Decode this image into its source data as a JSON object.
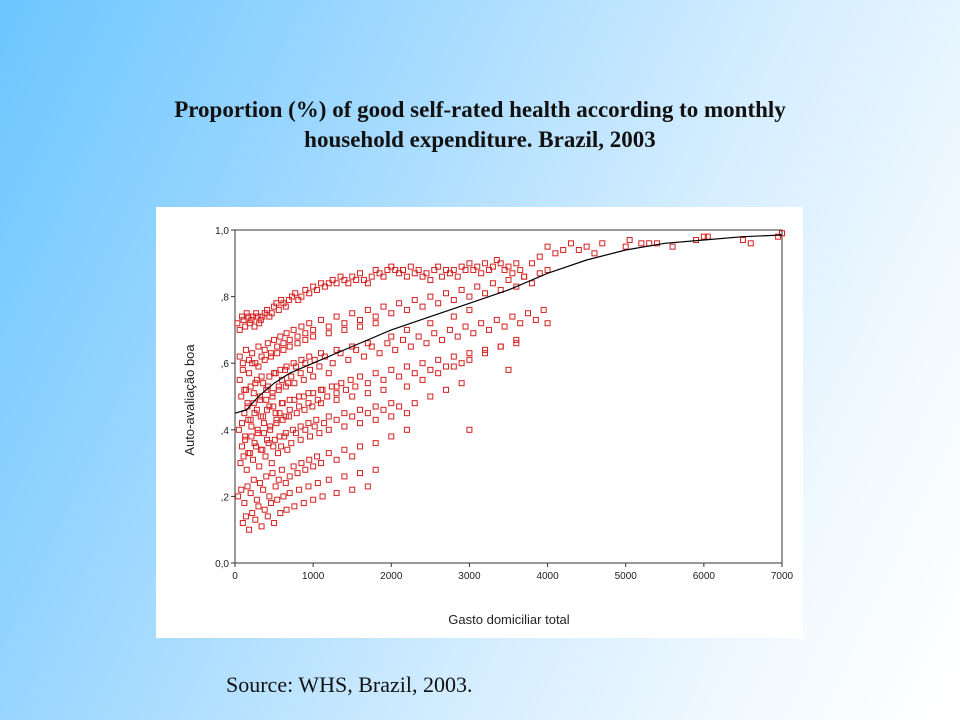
{
  "title": {
    "line1": "Proportion (%) of good self-rated health according to monthly",
    "line2": "household expenditure. Brazil, 2003"
  },
  "source": "Source: WHS, Brazil, 2003.",
  "chart_data": {
    "type": "scatter",
    "xlabel": "Gasto domiciliar total",
    "ylabel": "Auto-avaliação boa",
    "xlim": [
      0,
      7000
    ],
    "ylim": [
      0,
      1.0
    ],
    "x_ticks": [
      0,
      1000,
      2000,
      3000,
      4000,
      5000,
      6000,
      7000
    ],
    "x_tick_labels": [
      "0",
      "1000",
      "2000",
      "3000",
      "4000",
      "5000",
      "6000",
      "7000"
    ],
    "y_ticks": [
      0,
      0.2,
      0.4,
      0.6,
      0.8,
      1.0
    ],
    "y_tick_labels": [
      "0,0",
      ",2",
      ",4",
      ",6",
      ",8",
      "1,0"
    ],
    "marker_color": "#d42020",
    "line_color": "#000000",
    "grid": false,
    "fit_line": {
      "x": [
        0,
        150,
        300,
        500,
        700,
        1000,
        1500,
        2000,
        2500,
        3000,
        3500,
        4000,
        4500,
        5000,
        5500,
        6000,
        6500,
        7000
      ],
      "y": [
        0.45,
        0.46,
        0.5,
        0.54,
        0.57,
        0.6,
        0.65,
        0.7,
        0.74,
        0.78,
        0.82,
        0.87,
        0.91,
        0.94,
        0.96,
        0.97,
        0.98,
        0.985
      ]
    },
    "points": {
      "x": [
        30,
        60,
        90,
        110,
        130,
        150,
        170,
        190,
        210,
        230,
        250,
        270,
        290,
        310,
        330,
        350,
        380,
        410,
        440,
        470,
        500,
        530,
        560,
        590,
        620,
        650,
        690,
        730,
        770,
        810,
        850,
        900,
        950,
        1000,
        1050,
        1100,
        1150,
        1200,
        1250,
        1300,
        1350,
        1400,
        1450,
        1500,
        1550,
        1600,
        1650,
        1700,
        1750,
        1800,
        1850,
        1900,
        1950,
        2000,
        2050,
        2100,
        2150,
        2200,
        2250,
        2300,
        2350,
        2400,
        2450,
        2500,
        2550,
        2600,
        2650,
        2700,
        2750,
        2800,
        2850,
        2900,
        2950,
        3000,
        3050,
        3100,
        3150,
        3200,
        3250,
        3300,
        3350,
        3400,
        3450,
        3500,
        3550,
        3600,
        3650,
        3700,
        3800,
        3900,
        4000,
        4100,
        4200,
        4300,
        4400,
        4500,
        4600,
        4700,
        5000,
        5050,
        5200,
        5300,
        5400,
        5600,
        5900,
        6000,
        6050,
        6500,
        6600,
        6950,
        7000,
        60,
        100,
        140,
        180,
        220,
        260,
        300,
        340,
        380,
        420,
        460,
        500,
        540,
        580,
        620,
        660,
        700,
        750,
        800,
        850,
        900,
        950,
        1000,
        1100,
        1200,
        1300,
        1400,
        1500,
        1600,
        1700,
        1800,
        1900,
        2000,
        2100,
        2200,
        2300,
        2400,
        2500,
        2600,
        2700,
        2800,
        2900,
        3000,
        3100,
        3200,
        3300,
        3400,
        3500,
        3600,
        3700,
        3800,
        3900,
        4000,
        80,
        120,
        160,
        200,
        240,
        280,
        320,
        360,
        400,
        440,
        480,
        520,
        560,
        600,
        640,
        680,
        720,
        780,
        840,
        900,
        960,
        1020,
        1080,
        1150,
        1250,
        1350,
        1450,
        1550,
        1650,
        1750,
        1850,
        1950,
        2050,
        2150,
        2250,
        2350,
        2450,
        2550,
        2650,
        2750,
        2850,
        2950,
        3050,
        3150,
        3250,
        3350,
        3450,
        3550,
        3650,
        3750,
        3850,
        3950,
        50,
        90,
        130,
        170,
        210,
        250,
        290,
        330,
        370,
        410,
        450,
        490,
        530,
        570,
        610,
        650,
        700,
        760,
        820,
        880,
        940,
        1000,
        1060,
        1120,
        1180,
        1240,
        1300,
        1360,
        1420,
        1480,
        1540,
        1600,
        1700,
        1800,
        1900,
        2000,
        2100,
        2200,
        2300,
        2400,
        2500,
        2600,
        2700,
        2800,
        2900,
        3000,
        3200,
        3400,
        3600,
        4000,
        70,
        110,
        150,
        190,
        230,
        270,
        310,
        350,
        390,
        430,
        470,
        510,
        550,
        590,
        630,
        670,
        720,
        780,
        840,
        900,
        960,
        1020,
        1080,
        1140,
        1200,
        1300,
        1400,
        1500,
        1600,
        1700,
        1800,
        1900,
        2000,
        2100,
        2200,
        2300,
        2500,
        2700,
        2900,
        3000,
        3500,
        40,
        80,
        120,
        160,
        200,
        240,
        280,
        320,
        360,
        400,
        440,
        480,
        520,
        560,
        600,
        650,
        700,
        750,
        800,
        850,
        900,
        950,
        1000,
        1050,
        1100,
        1200,
        1300,
        1400,
        1500,
        1600,
        1800,
        2000,
        2200,
        60,
        100,
        140,
        180,
        220,
        260,
        300,
        340,
        380,
        420,
        460,
        500,
        540,
        580,
        620,
        660,
        700,
        750,
        800,
        850,
        900,
        950,
        1000,
        1100,
        1200,
        1300,
        1400,
        1500,
        1600,
        1700,
        1800,
        2000,
        2200,
        2500,
        2800,
        3000,
        90,
        130,
        170,
        210,
        250,
        290,
        330,
        370,
        410,
        450,
        490,
        530,
        570,
        610,
        650,
        690,
        740,
        790,
        840,
        890,
        940,
        990,
        1040,
        1100,
        1200,
        1300,
        1400,
        1500,
        1600,
        1700,
        1800,
        1900,
        2000,
        2200,
        2400,
        2600,
        2800,
        3000,
        3200,
        3400,
        3600,
        100,
        140,
        180,
        220,
        260,
        300,
        340,
        380,
        420,
        460,
        500,
        540,
        580,
        620,
        660,
        700,
        760,
        820,
        880,
        940,
        1000,
        1060,
        1120,
        1200,
        1300,
        1400,
        1500,
        1600,
        1700,
        1800,
        120,
        160,
        200,
        240,
        280,
        320,
        360,
        400,
        440,
        480,
        520,
        560,
        600,
        650,
        700,
        760,
        820,
        880,
        940,
        1000,
        1100,
        1200,
        1300
      ],
      "y": [
        0.72,
        0.7,
        0.74,
        0.73,
        0.71,
        0.75,
        0.74,
        0.72,
        0.73,
        0.74,
        0.71,
        0.75,
        0.74,
        0.72,
        0.73,
        0.74,
        0.75,
        0.76,
        0.74,
        0.75,
        0.77,
        0.78,
        0.76,
        0.79,
        0.78,
        0.77,
        0.79,
        0.8,
        0.81,
        0.79,
        0.8,
        0.82,
        0.81,
        0.83,
        0.82,
        0.84,
        0.83,
        0.84,
        0.85,
        0.84,
        0.86,
        0.85,
        0.84,
        0.86,
        0.85,
        0.87,
        0.85,
        0.84,
        0.86,
        0.88,
        0.87,
        0.86,
        0.88,
        0.89,
        0.88,
        0.87,
        0.88,
        0.86,
        0.89,
        0.87,
        0.88,
        0.86,
        0.87,
        0.85,
        0.88,
        0.89,
        0.86,
        0.88,
        0.87,
        0.88,
        0.86,
        0.89,
        0.88,
        0.9,
        0.88,
        0.89,
        0.87,
        0.9,
        0.88,
        0.89,
        0.91,
        0.9,
        0.88,
        0.89,
        0.87,
        0.9,
        0.88,
        0.86,
        0.9,
        0.92,
        0.95,
        0.93,
        0.94,
        0.96,
        0.94,
        0.95,
        0.93,
        0.96,
        0.95,
        0.97,
        0.96,
        0.96,
        0.96,
        0.95,
        0.97,
        0.98,
        0.98,
        0.97,
        0.96,
        0.98,
        0.99,
        0.62,
        0.6,
        0.64,
        0.61,
        0.63,
        0.6,
        0.65,
        0.62,
        0.64,
        0.66,
        0.63,
        0.67,
        0.65,
        0.68,
        0.66,
        0.69,
        0.67,
        0.7,
        0.68,
        0.71,
        0.69,
        0.72,
        0.7,
        0.73,
        0.71,
        0.74,
        0.72,
        0.75,
        0.73,
        0.76,
        0.74,
        0.77,
        0.75,
        0.78,
        0.76,
        0.79,
        0.77,
        0.8,
        0.78,
        0.81,
        0.79,
        0.82,
        0.8,
        0.83,
        0.81,
        0.84,
        0.82,
        0.85,
        0.83,
        0.86,
        0.84,
        0.87,
        0.88,
        0.5,
        0.52,
        0.48,
        0.53,
        0.51,
        0.55,
        0.49,
        0.54,
        0.52,
        0.56,
        0.5,
        0.57,
        0.53,
        0.55,
        0.58,
        0.54,
        0.56,
        0.59,
        0.57,
        0.6,
        0.58,
        0.61,
        0.59,
        0.62,
        0.6,
        0.63,
        0.61,
        0.64,
        0.62,
        0.65,
        0.63,
        0.66,
        0.64,
        0.67,
        0.65,
        0.68,
        0.66,
        0.69,
        0.67,
        0.7,
        0.68,
        0.71,
        0.69,
        0.72,
        0.7,
        0.73,
        0.71,
        0.74,
        0.72,
        0.75,
        0.73,
        0.76,
        0.4,
        0.42,
        0.38,
        0.43,
        0.41,
        0.45,
        0.39,
        0.44,
        0.42,
        0.46,
        0.4,
        0.47,
        0.43,
        0.45,
        0.48,
        0.44,
        0.46,
        0.49,
        0.47,
        0.5,
        0.48,
        0.51,
        0.49,
        0.52,
        0.5,
        0.53,
        0.51,
        0.54,
        0.52,
        0.55,
        0.53,
        0.56,
        0.54,
        0.57,
        0.55,
        0.58,
        0.56,
        0.59,
        0.57,
        0.6,
        0.58,
        0.61,
        0.59,
        0.62,
        0.6,
        0.63,
        0.64,
        0.65,
        0.66,
        0.72,
        0.3,
        0.32,
        0.28,
        0.33,
        0.31,
        0.35,
        0.29,
        0.34,
        0.32,
        0.36,
        0.3,
        0.37,
        0.33,
        0.35,
        0.38,
        0.34,
        0.36,
        0.39,
        0.37,
        0.4,
        0.38,
        0.41,
        0.39,
        0.42,
        0.4,
        0.43,
        0.41,
        0.44,
        0.42,
        0.45,
        0.43,
        0.46,
        0.44,
        0.47,
        0.45,
        0.48,
        0.5,
        0.52,
        0.54,
        0.4,
        0.58,
        0.2,
        0.22,
        0.18,
        0.23,
        0.21,
        0.25,
        0.19,
        0.24,
        0.22,
        0.26,
        0.2,
        0.27,
        0.23,
        0.25,
        0.28,
        0.24,
        0.26,
        0.29,
        0.27,
        0.3,
        0.28,
        0.31,
        0.29,
        0.32,
        0.3,
        0.33,
        0.31,
        0.34,
        0.32,
        0.35,
        0.36,
        0.38,
        0.4,
        0.55,
        0.58,
        0.52,
        0.57,
        0.6,
        0.54,
        0.59,
        0.56,
        0.61,
        0.53,
        0.62,
        0.57,
        0.63,
        0.58,
        0.64,
        0.59,
        0.65,
        0.6,
        0.66,
        0.61,
        0.67,
        0.62,
        0.68,
        0.63,
        0.69,
        0.64,
        0.7,
        0.65,
        0.71,
        0.66,
        0.72,
        0.68,
        0.7,
        0.72,
        0.74,
        0.76,
        0.35,
        0.37,
        0.33,
        0.38,
        0.36,
        0.4,
        0.34,
        0.39,
        0.37,
        0.41,
        0.35,
        0.42,
        0.38,
        0.43,
        0.39,
        0.44,
        0.4,
        0.45,
        0.41,
        0.46,
        0.42,
        0.47,
        0.43,
        0.48,
        0.44,
        0.49,
        0.45,
        0.5,
        0.46,
        0.51,
        0.47,
        0.52,
        0.48,
        0.53,
        0.55,
        0.57,
        0.59,
        0.61,
        0.63,
        0.65,
        0.67,
        0.12,
        0.14,
        0.1,
        0.15,
        0.13,
        0.17,
        0.11,
        0.16,
        0.14,
        0.18,
        0.12,
        0.19,
        0.15,
        0.2,
        0.16,
        0.21,
        0.17,
        0.22,
        0.18,
        0.23,
        0.19,
        0.24,
        0.2,
        0.25,
        0.21,
        0.26,
        0.22,
        0.27,
        0.23,
        0.28,
        0.45,
        0.47,
        0.43,
        0.48,
        0.46,
        0.5,
        0.44,
        0.49,
        0.47,
        0.51,
        0.45,
        0.52,
        0.48,
        0.53,
        0.49,
        0.54,
        0.5,
        0.55,
        0.51,
        0.56,
        0.52,
        0.57,
        0.53
      ]
    }
  }
}
